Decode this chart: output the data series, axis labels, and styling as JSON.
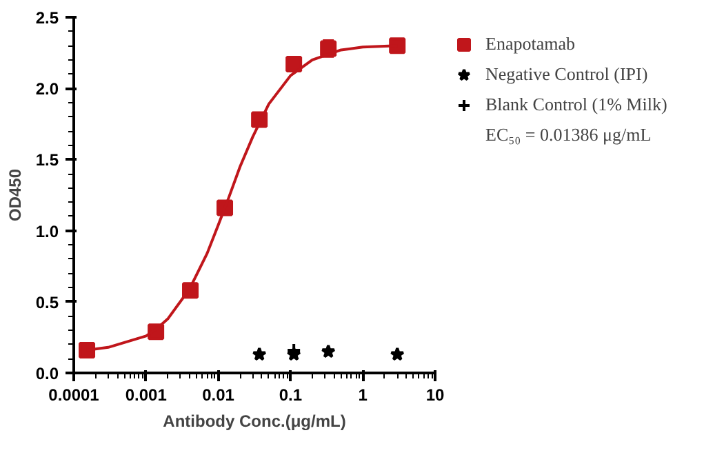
{
  "chart_data": {
    "type": "scatter",
    "xlabel": "Antibody Conc.(μg/mL)",
    "ylabel": "OD450",
    "annotations": [
      "EC₅₀ = 0.01386 μg/mL"
    ],
    "log": "x",
    "grid": false,
    "legend": "right",
    "xlim": [
      0.0001,
      10
    ],
    "xticks": [
      {
        "value": 0.0001,
        "label": "0.0001"
      },
      {
        "value": 0.001,
        "label": "0.001"
      },
      {
        "value": 0.01,
        "label": "0.01"
      },
      {
        "value": 0.1,
        "label": "0.1"
      },
      {
        "value": 1,
        "label": "1"
      },
      {
        "value": 10,
        "label": "10"
      }
    ],
    "ylim": [
      0,
      2.5
    ],
    "yticks": [
      {
        "value": 0,
        "label": "0.0"
      },
      {
        "value": 0.5,
        "label": "0.5"
      },
      {
        "value": 1,
        "label": "1.0"
      },
      {
        "value": 1.5,
        "label": "1.5"
      },
      {
        "value": 2,
        "label": "2.0"
      },
      {
        "value": 2.5,
        "label": "2.5"
      }
    ],
    "series": [
      {
        "name": "Enapotamab",
        "color": "#c0161b",
        "marker": "square",
        "x": [
          0.000152,
          0.00137,
          0.0041,
          0.0123,
          0.037,
          0.111,
          0.333,
          3
        ],
        "values": [
          0.16,
          0.29,
          0.58,
          1.16,
          1.78,
          2.17,
          2.28,
          2.3
        ],
        "errors": [
          null,
          null,
          null,
          0.04,
          null,
          0.04,
          0.06,
          null
        ]
      },
      {
        "type": "line",
        "color": "#c0161b",
        "marker": "none",
        "x": [
          0.00015,
          0.0003,
          0.001,
          0.0014,
          0.002,
          0.004,
          0.007,
          0.01,
          0.0139,
          0.02,
          0.03,
          0.05,
          0.1,
          0.2,
          0.5,
          1,
          3
        ],
        "values": [
          0.16,
          0.18,
          0.26,
          0.31,
          0.38,
          0.59,
          0.84,
          1.04,
          1.23,
          1.45,
          1.66,
          1.89,
          2.09,
          2.2,
          2.27,
          2.29,
          2.3
        ]
      },
      {
        "name": "Negative Control (IPI)",
        "color": "#000000",
        "marker": "star",
        "x": [
          0.037,
          0.111,
          0.333,
          3
        ],
        "values": [
          0.13,
          0.13,
          0.15,
          0.13
        ]
      },
      {
        "name": "Blank Control (1% Milk)",
        "color": "#000000",
        "marker": "cross",
        "x": [
          0.111
        ],
        "values": [
          0.16
        ]
      }
    ]
  }
}
